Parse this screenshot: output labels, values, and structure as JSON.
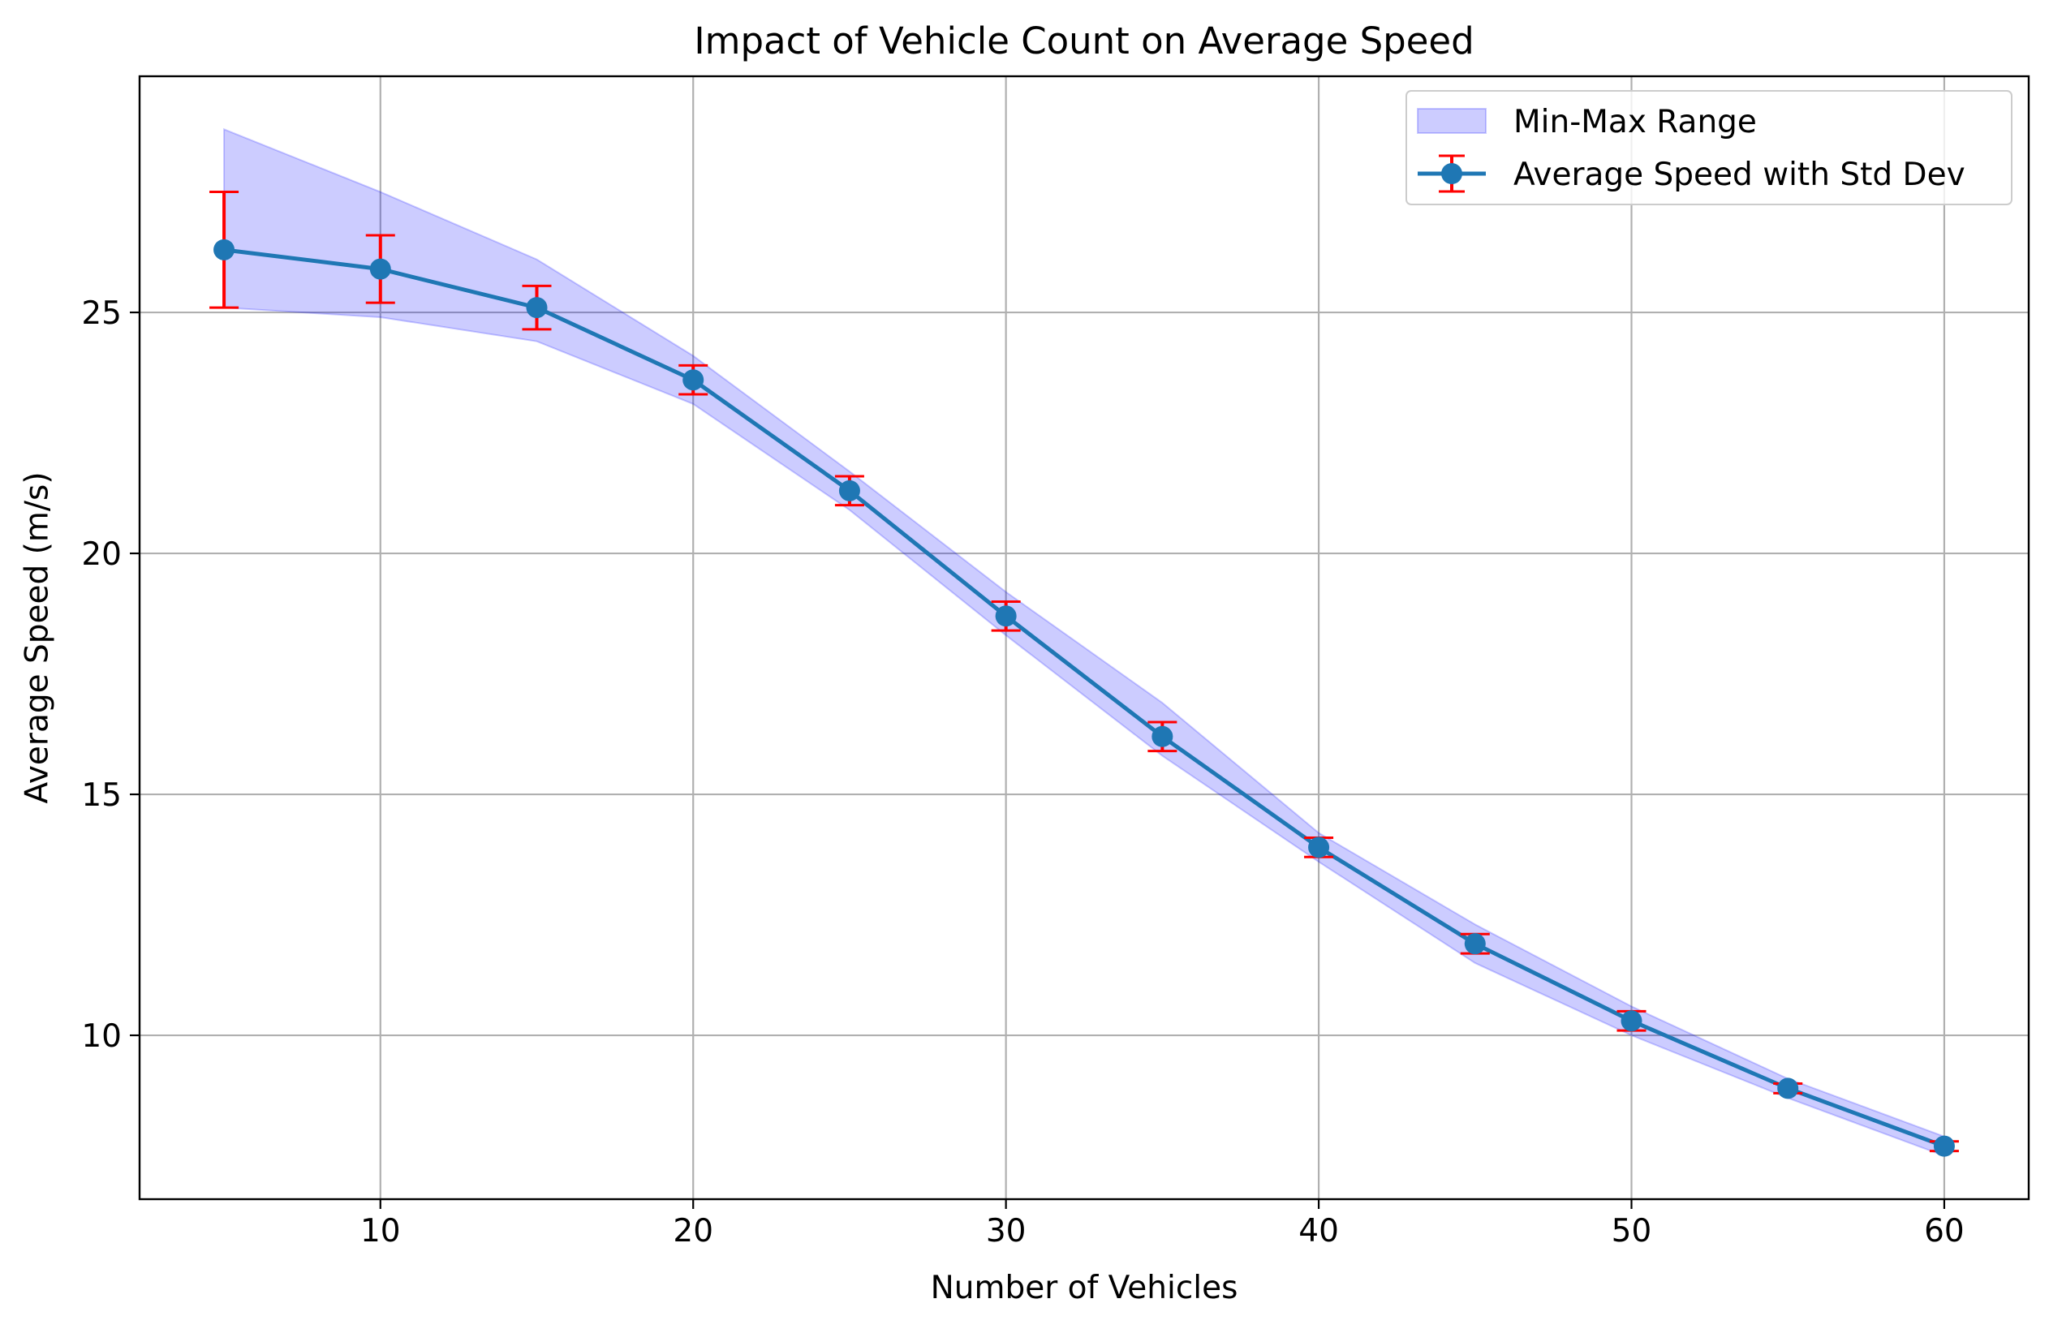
{
  "chart_data": {
    "type": "line",
    "title": "Impact of Vehicle Count on Average Speed",
    "xlabel": "Number of Vehicles",
    "ylabel": "Average Speed (m/s)",
    "xlim": [
      2.3,
      62.7
    ],
    "ylim": [
      6.6,
      29.9
    ],
    "x_ticks": [
      10,
      20,
      30,
      40,
      50,
      60
    ],
    "y_ticks": [
      10,
      15,
      20,
      25
    ],
    "grid": true,
    "legend_position": "top-right",
    "x": [
      5,
      10,
      15,
      20,
      25,
      30,
      35,
      40,
      45,
      50,
      55,
      60
    ],
    "series": [
      {
        "name": "Average Speed with Std Dev",
        "values": [
          26.3,
          25.9,
          25.1,
          23.6,
          21.3,
          18.7,
          16.2,
          13.9,
          11.9,
          10.3,
          8.9,
          7.7
        ],
        "error": [
          1.2,
          0.7,
          0.45,
          0.3,
          0.3,
          0.3,
          0.3,
          0.2,
          0.2,
          0.2,
          0.1,
          0.1
        ],
        "color": "#1f77b4",
        "error_color": "#ff0000"
      }
    ],
    "band": {
      "name": "Min-Max Range",
      "lower": [
        25.1,
        24.9,
        24.4,
        23.1,
        20.9,
        18.3,
        15.8,
        13.6,
        11.5,
        10.0,
        8.7,
        7.5
      ],
      "upper": [
        28.8,
        27.5,
        26.1,
        24.1,
        21.7,
        19.2,
        16.9,
        14.2,
        12.3,
        10.6,
        9.1,
        7.9
      ],
      "color": "#0000ff",
      "fill_opacity": 0.2
    }
  }
}
